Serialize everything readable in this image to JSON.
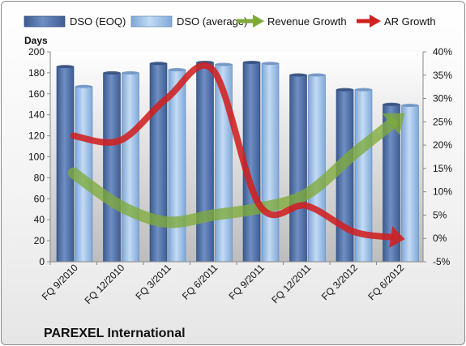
{
  "chart_data": {
    "type": "bar+line",
    "categories": [
      "FQ 9/2010",
      "FQ 12/2010",
      "FQ 3/2011",
      "FQ 6/2011",
      "FQ 9/2011",
      "FQ 12/2011",
      "FQ 3/2012",
      "FQ 6/2012"
    ],
    "series": [
      {
        "name": "DSO (EOQ)",
        "kind": "bar",
        "axis": "left",
        "values": [
          186,
          180,
          189,
          190,
          190,
          178,
          164,
          150
        ],
        "color": "#4f6fa3"
      },
      {
        "name": "DSO (average)",
        "kind": "bar",
        "axis": "left",
        "values": [
          167,
          180,
          183,
          188,
          189,
          178,
          164,
          149
        ],
        "color": "#8fb4e0"
      },
      {
        "name": "Revenue Growth",
        "kind": "arrow-line",
        "axis": "right",
        "values": [
          0.14,
          0.07,
          0.035,
          0.05,
          0.065,
          0.095,
          0.18,
          0.26
        ],
        "color": "#7faa3a"
      },
      {
        "name": "AR Growth",
        "kind": "arrow-line",
        "axis": "right",
        "values": [
          0.22,
          0.21,
          0.3,
          0.36,
          0.07,
          0.07,
          0.015,
          0.0
        ],
        "color": "#d02020"
      }
    ],
    "ylabel": "Days",
    "ylim": [
      0,
      200
    ],
    "yticks": [
      0,
      20,
      40,
      60,
      80,
      100,
      120,
      140,
      160,
      180,
      200
    ],
    "y2lim": [
      -0.05,
      0.4
    ],
    "y2ticks": [
      "-5%",
      "0%",
      "5%",
      "10%",
      "15%",
      "20%",
      "25%",
      "30%",
      "35%",
      "40%"
    ],
    "legend_position": "top",
    "grid": false
  },
  "company": "PAREXEL International",
  "colors": {
    "plot_background_top": "#ffffff",
    "plot_background_bottom": "#bcbcbc"
  }
}
